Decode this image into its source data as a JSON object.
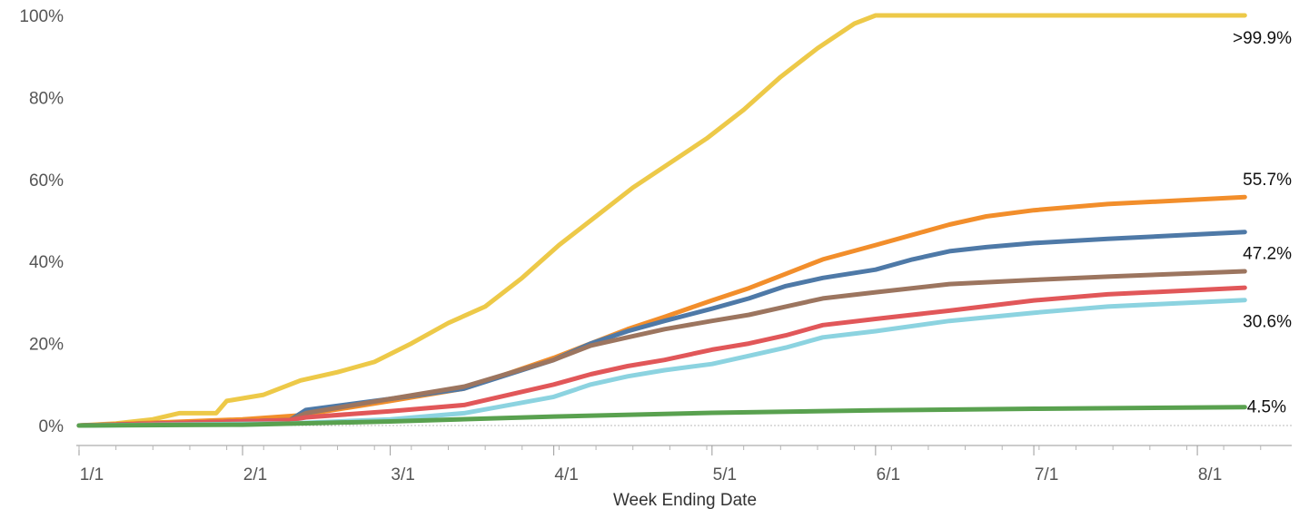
{
  "chart_data": {
    "type": "line",
    "title": "",
    "xlabel": "Week Ending Date",
    "ylabel": "",
    "ylim": [
      0,
      100
    ],
    "y_ticks": [
      "0%",
      "20%",
      "40%",
      "60%",
      "80%",
      "100%"
    ],
    "x_ticks": [
      "1/1",
      "2/1",
      "3/1",
      "4/1",
      "5/1",
      "6/1",
      "7/1",
      "8/1"
    ],
    "grid": false,
    "series": [
      {
        "color": "#EDC948",
        "end_label": ">99.9%",
        "points": [
          [
            "1/1",
            0
          ],
          [
            "1/8",
            0.5
          ],
          [
            "1/15",
            1.5
          ],
          [
            "1/20",
            3
          ],
          [
            "1/27",
            3
          ],
          [
            "1/29",
            6
          ],
          [
            "2/5",
            7.5
          ],
          [
            "2/12",
            11
          ],
          [
            "2/19",
            13
          ],
          [
            "2/26",
            15.5
          ],
          [
            "3/5",
            20
          ],
          [
            "3/12",
            25
          ],
          [
            "3/19",
            29
          ],
          [
            "3/26",
            36
          ],
          [
            "4/2",
            44
          ],
          [
            "4/9",
            51
          ],
          [
            "4/16",
            58
          ],
          [
            "4/23",
            64
          ],
          [
            "4/30",
            70
          ],
          [
            "5/7",
            77
          ],
          [
            "5/14",
            85
          ],
          [
            "5/21",
            92
          ],
          [
            "5/28",
            98
          ],
          [
            "6/1",
            100
          ],
          [
            "8/10",
            100
          ]
        ]
      },
      {
        "color": "#F28E2B",
        "end_label": "55.7%",
        "points": [
          [
            "1/1",
            0
          ],
          [
            "2/1",
            1.5
          ],
          [
            "2/12",
            2.5
          ],
          [
            "3/1",
            6
          ],
          [
            "3/15",
            9
          ],
          [
            "4/1",
            16.5
          ],
          [
            "4/8",
            20
          ],
          [
            "4/15",
            23.5
          ],
          [
            "4/22",
            26.5
          ],
          [
            "5/1",
            30.5
          ],
          [
            "5/8",
            33.5
          ],
          [
            "5/15",
            37
          ],
          [
            "5/22",
            40.5
          ],
          [
            "6/1",
            44
          ],
          [
            "6/8",
            46.5
          ],
          [
            "6/15",
            49
          ],
          [
            "6/22",
            51
          ],
          [
            "7/1",
            52.5
          ],
          [
            "7/15",
            54
          ],
          [
            "8/10",
            55.7
          ]
        ]
      },
      {
        "color": "#4E79A7",
        "end_label": "47.2%",
        "points": [
          [
            "1/1",
            0
          ],
          [
            "2/10",
            1.3
          ],
          [
            "2/13",
            3.8
          ],
          [
            "3/1",
            6.5
          ],
          [
            "3/15",
            9
          ],
          [
            "4/1",
            16
          ],
          [
            "4/8",
            20
          ],
          [
            "4/15",
            23
          ],
          [
            "4/22",
            25.5
          ],
          [
            "5/1",
            28.5
          ],
          [
            "5/8",
            31
          ],
          [
            "5/15",
            34
          ],
          [
            "5/22",
            36
          ],
          [
            "6/1",
            38
          ],
          [
            "6/8",
            40.5
          ],
          [
            "6/15",
            42.5
          ],
          [
            "6/22",
            43.5
          ],
          [
            "7/1",
            44.5
          ],
          [
            "7/15",
            45.5
          ],
          [
            "8/10",
            47.2
          ]
        ]
      },
      {
        "color": "#9C755F",
        "end_label": "",
        "points": [
          [
            "1/1",
            0
          ],
          [
            "2/10",
            1.3
          ],
          [
            "2/13",
            3
          ],
          [
            "3/1",
            6.5
          ],
          [
            "3/15",
            9.5
          ],
          [
            "4/1",
            16
          ],
          [
            "4/8",
            19.5
          ],
          [
            "4/15",
            21.5
          ],
          [
            "4/22",
            23.5
          ],
          [
            "5/1",
            25.5
          ],
          [
            "5/8",
            27
          ],
          [
            "5/15",
            29
          ],
          [
            "5/22",
            31
          ],
          [
            "6/1",
            32.5
          ],
          [
            "6/15",
            34.5
          ],
          [
            "7/1",
            35.5
          ],
          [
            "7/15",
            36.3
          ],
          [
            "8/10",
            37.6
          ]
        ]
      },
      {
        "color": "#E15759",
        "end_label": "",
        "points": [
          [
            "1/1",
            0
          ],
          [
            "2/10",
            1.3
          ],
          [
            "2/13",
            2
          ],
          [
            "3/1",
            3.5
          ],
          [
            "3/15",
            5
          ],
          [
            "4/1",
            10
          ],
          [
            "4/8",
            12.5
          ],
          [
            "4/15",
            14.5
          ],
          [
            "4/22",
            16
          ],
          [
            "5/1",
            18.5
          ],
          [
            "5/8",
            20
          ],
          [
            "5/15",
            22
          ],
          [
            "5/22",
            24.5
          ],
          [
            "6/1",
            26
          ],
          [
            "6/15",
            28
          ],
          [
            "7/1",
            30.5
          ],
          [
            "7/15",
            32
          ],
          [
            "8/10",
            33.6
          ]
        ]
      },
      {
        "color": "#8CD3E0",
        "end_label": "30.6%",
        "points": [
          [
            "1/1",
            0
          ],
          [
            "2/10",
            0.5
          ],
          [
            "3/1",
            1.5
          ],
          [
            "3/15",
            3
          ],
          [
            "4/1",
            7
          ],
          [
            "4/8",
            10
          ],
          [
            "4/15",
            12
          ],
          [
            "4/22",
            13.5
          ],
          [
            "5/1",
            15
          ],
          [
            "5/8",
            17
          ],
          [
            "5/15",
            19
          ],
          [
            "5/22",
            21.5
          ],
          [
            "6/1",
            23
          ],
          [
            "6/15",
            25.5
          ],
          [
            "7/1",
            27.5
          ],
          [
            "7/15",
            29
          ],
          [
            "8/10",
            30.6
          ]
        ]
      },
      {
        "color": "#59A14F",
        "end_label": "4.5%",
        "points": [
          [
            "1/1",
            0
          ],
          [
            "2/1",
            0.2
          ],
          [
            "3/1",
            1
          ],
          [
            "4/1",
            2.2
          ],
          [
            "5/1",
            3.1
          ],
          [
            "6/1",
            3.7
          ],
          [
            "7/1",
            4.1
          ],
          [
            "8/10",
            4.5
          ]
        ]
      }
    ]
  }
}
